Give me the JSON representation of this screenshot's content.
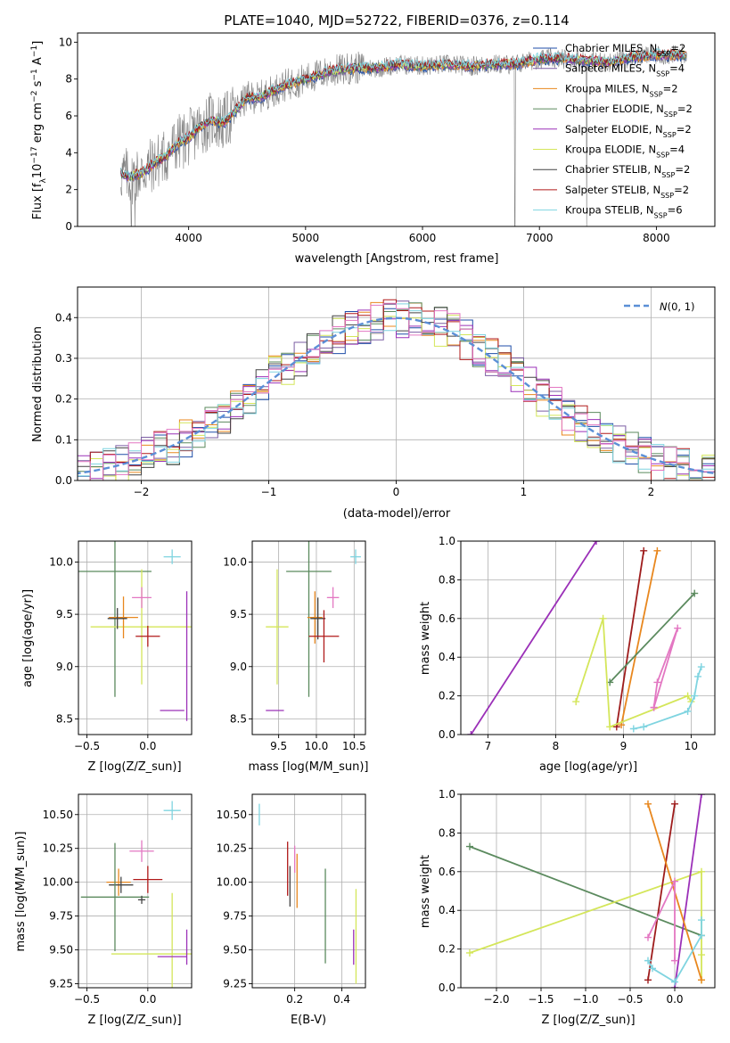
{
  "figure_title": "PLATE=1040, MJD=52722, FIBERID=0376, z=0.114",
  "chart_data": [
    {
      "id": "spectrum",
      "type": "line",
      "title": "PLATE=1040, MJD=52722, FIBERID=0376, z=0.114",
      "xlabel": "wavelength [Angstrom, rest frame]",
      "ylabel": "Flux [f_λ 10^-17 erg cm^-2 s^-1 A^-1]",
      "xlim": [
        3050,
        8500
      ],
      "ylim": [
        0,
        10.5
      ],
      "xticks": [
        4000,
        5000,
        6000,
        7000,
        8000
      ],
      "yticks": [
        0,
        2,
        4,
        6,
        8,
        10
      ],
      "grid": false,
      "legend_position": "upper right",
      "data_series": {
        "name": "data",
        "color": "#808080"
      },
      "data_spikes_to_zero": [
        3510,
        3540,
        6790,
        7405
      ],
      "model_shape": {
        "x": [
          3400,
          3500,
          3600,
          3700,
          3800,
          3900,
          4000,
          4100,
          4200,
          4300,
          4400,
          4500,
          4600,
          4700,
          4800,
          4900,
          5000,
          5200,
          5400,
          5600,
          5800,
          6000,
          6200,
          6400,
          6600,
          6800,
          7000,
          7200,
          7400,
          7600,
          7800,
          8000,
          8200
        ],
        "y": [
          2.9,
          2.7,
          2.9,
          3.4,
          3.8,
          4.5,
          4.8,
          5.4,
          5.8,
          5.6,
          6.3,
          7.0,
          7.0,
          7.3,
          7.6,
          7.8,
          8.0,
          8.4,
          8.6,
          8.6,
          8.8,
          8.7,
          8.8,
          8.7,
          8.8,
          8.8,
          9.1,
          9.1,
          9.0,
          8.9,
          9.2,
          9.3,
          9.3
        ]
      },
      "series": [
        {
          "name": "Chabrier MILES, N_SSP=2",
          "color": "#1f4ea8"
        },
        {
          "name": "Salpeter MILES, N_SSP=4",
          "color": "#7b5ea3"
        },
        {
          "name": "Kroupa MILES, N_SSP=2",
          "color": "#e8871e"
        },
        {
          "name": "Chabrier ELODIE, N_SSP=2",
          "color": "#5b8a5e"
        },
        {
          "name": "Salpeter ELODIE, N_SSP=2",
          "color": "#9b30b8"
        },
        {
          "name": "Kroupa ELODIE, N_SSP=4",
          "color": "#d4e65a"
        },
        {
          "name": "Chabrier STELIB, N_SSP=2",
          "color": "#444444"
        },
        {
          "name": "Salpeter STELIB, N_SSP=2",
          "color": "#b01a1a"
        },
        {
          "name": "Kroupa STELIB, N_SSP=6",
          "color": "#7fd4e0"
        }
      ]
    },
    {
      "id": "residuals",
      "type": "histogram",
      "xlabel": "(data-model)/error",
      "ylabel": "Normed distribution",
      "xlim": [
        -2.5,
        2.5
      ],
      "ylim": [
        0,
        0.475
      ],
      "xticks": [
        -2,
        -1,
        0,
        1,
        2
      ],
      "yticks": [
        0.0,
        0.1,
        0.2,
        0.3,
        0.4
      ],
      "grid": true,
      "legend_position": "upper right",
      "bin_width": 0.1,
      "reference": {
        "name": "N(0,1)",
        "mean": 0,
        "sigma": 1,
        "color": "#5b8fd6"
      },
      "series_colors": [
        "#1f4ea8",
        "#7b5ea3",
        "#e8871e",
        "#5b8a5e",
        "#9b30b8",
        "#d4e65a",
        "#444444",
        "#b01a1a",
        "#7fd4e0",
        "#e377c2"
      ]
    },
    {
      "id": "age_vs_Z",
      "type": "errorbar",
      "xlabel": "Z [log10(Z/Z_sun)]",
      "ylabel": "age [log10(age/yr)]",
      "xlim": [
        -0.57,
        0.36
      ],
      "ylim": [
        8.35,
        10.2
      ],
      "xticks": [
        -0.5,
        0.0
      ],
      "yticks": [
        8.5,
        9.0,
        9.5,
        10.0
      ],
      "grid": true,
      "points": [
        {
          "color": "#7fd4e0",
          "x": 0.2,
          "y": 10.05,
          "xerr": 0.07,
          "yerr": 0.07
        },
        {
          "color": "#5b8a5e",
          "x": -0.27,
          "y": 9.91,
          "xerr": 0.3,
          "yerr": 1.2
        },
        {
          "color": "#d4e65a",
          "x": -0.05,
          "y": 9.38,
          "xerr": 0.42,
          "yerr": 0.55
        },
        {
          "color": "#e377c2",
          "x": -0.05,
          "y": 9.66,
          "xerr": 0.08,
          "yerr": 0.1
        },
        {
          "color": "#e8871e",
          "x": -0.2,
          "y": 9.47,
          "xerr": 0.12,
          "yerr": 0.2
        },
        {
          "color": "#444444",
          "x": -0.25,
          "y": 9.46,
          "xerr": 0.08,
          "yerr": 0.1
        },
        {
          "color": "#b01a1a",
          "x": 0.0,
          "y": 9.29,
          "xerr": 0.1,
          "yerr": 0.1
        },
        {
          "color": "#9b30b8",
          "x": 0.2,
          "y": 8.58,
          "xerr": 0.1,
          "yerr": 0.0
        },
        {
          "color": "#9b30b8",
          "x": 0.32,
          "y": 9.1,
          "xerr": 0.0,
          "yerr": 0.62
        }
      ]
    },
    {
      "id": "age_vs_mass",
      "type": "errorbar",
      "xlabel": "mass [log10(M/M_sun)]",
      "xlim": [
        9.15,
        10.65
      ],
      "ylim": [
        8.35,
        10.2
      ],
      "xticks": [
        9.5,
        10.0,
        10.5
      ],
      "yticks": [
        8.5,
        9.0,
        9.5,
        10.0
      ],
      "grid": true,
      "points": [
        {
          "color": "#7fd4e0",
          "x": 10.52,
          "y": 10.05,
          "xerr": 0.07,
          "yerr": 0.07
        },
        {
          "color": "#5b8a5e",
          "x": 9.9,
          "y": 9.91,
          "xerr": 0.3,
          "yerr": 1.2
        },
        {
          "color": "#d4e65a",
          "x": 9.48,
          "y": 9.38,
          "xerr": 0.15,
          "yerr": 0.55
        },
        {
          "color": "#e377c2",
          "x": 10.22,
          "y": 9.66,
          "xerr": 0.08,
          "yerr": 0.1
        },
        {
          "color": "#e8871e",
          "x": 9.98,
          "y": 9.47,
          "xerr": 0.1,
          "yerr": 0.25
        },
        {
          "color": "#444444",
          "x": 10.02,
          "y": 9.46,
          "xerr": 0.1,
          "yerr": 0.2
        },
        {
          "color": "#b01a1a",
          "x": 10.1,
          "y": 9.29,
          "xerr": 0.2,
          "yerr": 0.25
        },
        {
          "color": "#9b30b8",
          "x": 9.45,
          "y": 8.58,
          "xerr": 0.12,
          "yerr": 0.0
        }
      ]
    },
    {
      "id": "weight_vs_age",
      "type": "line",
      "xlabel": "age [log10(age/yr)]",
      "ylabel": "mass weight",
      "xlim": [
        6.6,
        10.35
      ],
      "ylim": [
        0,
        1
      ],
      "xticks": [
        7,
        8,
        9,
        10
      ],
      "yticks": [
        0.0,
        0.2,
        0.4,
        0.6,
        0.8,
        1.0
      ],
      "grid": true,
      "series": [
        {
          "color": "#9b30b8",
          "x": [
            6.75,
            8.6
          ],
          "y": [
            0.0,
            1.0
          ]
        },
        {
          "color": "#9e1c1c",
          "x": [
            8.9,
            9.3
          ],
          "y": [
            0.04,
            0.95
          ]
        },
        {
          "color": "#e8871e",
          "x": [
            8.97,
            9.5
          ],
          "y": [
            0.05,
            0.95
          ]
        },
        {
          "color": "#5b8a5e",
          "x": [
            8.8,
            10.05
          ],
          "y": [
            0.27,
            0.73
          ]
        },
        {
          "color": "#d4e65a",
          "x": [
            8.3,
            8.7,
            8.8,
            9.95,
            10.0
          ],
          "y": [
            0.17,
            0.6,
            0.04,
            0.2,
            0.17
          ]
        },
        {
          "color": "#e377c2",
          "x": [
            9.45,
            9.8,
            9.5,
            9.45
          ],
          "y": [
            0.14,
            0.55,
            0.27,
            0.14
          ]
        },
        {
          "color": "#7fd4e0",
          "x": [
            9.15,
            9.3,
            9.95,
            10.05,
            10.1,
            10.15
          ],
          "y": [
            0.03,
            0.04,
            0.12,
            0.2,
            0.3,
            0.35
          ]
        }
      ]
    },
    {
      "id": "mass_vs_Z",
      "type": "errorbar",
      "xlabel": "Z [log10(Z/Z_sun)]",
      "ylabel": "mass [log10(M/M_sun)]",
      "xlim": [
        -0.57,
        0.36
      ],
      "ylim": [
        9.22,
        10.65
      ],
      "xticks": [
        -0.5,
        0.0
      ],
      "yticks": [
        9.25,
        9.5,
        9.75,
        10.0,
        10.25,
        10.5
      ],
      "grid": true,
      "points": [
        {
          "color": "#7fd4e0",
          "x": 0.2,
          "y": 10.53,
          "xerr": 0.07,
          "yerr": 0.07
        },
        {
          "color": "#e377c2",
          "x": -0.05,
          "y": 10.23,
          "xerr": 0.1,
          "yerr": 0.08
        },
        {
          "color": "#e8871e",
          "x": -0.24,
          "y": 10.0,
          "xerr": 0.1,
          "yerr": 0.1
        },
        {
          "color": "#444444",
          "x": -0.22,
          "y": 9.98,
          "xerr": 0.1,
          "yerr": 0.06
        },
        {
          "color": "#b01a1a",
          "x": 0.0,
          "y": 10.02,
          "xerr": 0.12,
          "yerr": 0.1
        },
        {
          "color": "#5b8a5e",
          "x": -0.27,
          "y": 9.89,
          "xerr": 0.28,
          "yerr": 0.4
        },
        {
          "color": "#444444",
          "x": -0.05,
          "y": 9.87,
          "xerr": 0.03,
          "yerr": 0.03
        },
        {
          "color": "#d4e65a",
          "x": 0.2,
          "y": 9.47,
          "xerr": 0.5,
          "yerr": 0.45
        },
        {
          "color": "#9b30b8",
          "x": 0.2,
          "y": 9.45,
          "xerr": 0.12,
          "yerr": 0.0
        },
        {
          "color": "#9b30b8",
          "x": 0.32,
          "y": 9.52,
          "xerr": 0.0,
          "yerr": 0.13
        }
      ]
    },
    {
      "id": "mass_vs_ebv",
      "type": "errorbar",
      "xlabel": "E(B-V)",
      "xlim": [
        0.02,
        0.5
      ],
      "ylim": [
        9.22,
        10.65
      ],
      "xticks": [
        0.2,
        0.4
      ],
      "yticks": [
        9.25,
        9.5,
        9.75,
        10.0,
        10.25,
        10.5
      ],
      "grid": true,
      "points": [
        {
          "color": "#7fd4e0",
          "x": 0.05,
          "y": 10.5,
          "xerr": 0.0,
          "yerr": 0.08
        },
        {
          "color": "#b01a1a",
          "x": 0.17,
          "y": 10.1,
          "xerr": 0.0,
          "yerr": 0.2
        },
        {
          "color": "#444444",
          "x": 0.18,
          "y": 9.97,
          "xerr": 0.0,
          "yerr": 0.15
        },
        {
          "color": "#e377c2",
          "x": 0.2,
          "y": 10.17,
          "xerr": 0.0,
          "yerr": 0.1
        },
        {
          "color": "#e8871e",
          "x": 0.21,
          "y": 10.01,
          "xerr": 0.0,
          "yerr": 0.2
        },
        {
          "color": "#5b8a5e",
          "x": 0.33,
          "y": 9.75,
          "xerr": 0.0,
          "yerr": 0.35
        },
        {
          "color": "#9b30b8",
          "x": 0.45,
          "y": 9.52,
          "xerr": 0.0,
          "yerr": 0.13
        },
        {
          "color": "#d4e65a",
          "x": 0.46,
          "y": 9.6,
          "xerr": 0.0,
          "yerr": 0.35
        }
      ]
    },
    {
      "id": "weight_vs_Z",
      "type": "line",
      "xlabel": "Z [log10(Z/Z_sun)]",
      "ylabel": "mass weight",
      "xlim": [
        -2.4,
        0.45
      ],
      "ylim": [
        0,
        1
      ],
      "xticks": [
        -2.0,
        -1.5,
        -1.0,
        -0.5,
        0.0
      ],
      "yticks": [
        0.0,
        0.2,
        0.4,
        0.6,
        0.8,
        1.0
      ],
      "grid": true,
      "series": [
        {
          "color": "#5b8a5e",
          "x": [
            -2.3,
            0.3
          ],
          "y": [
            0.73,
            0.27
          ]
        },
        {
          "color": "#d4e65a",
          "x": [
            -2.3,
            0.3,
            0.3,
            0.3
          ],
          "y": [
            0.18,
            0.6,
            0.04,
            0.17
          ]
        },
        {
          "color": "#9b30b8",
          "x": [
            0.0,
            0.3
          ],
          "y": [
            0.0,
            1.0
          ]
        },
        {
          "color": "#9e1c1c",
          "x": [
            -0.3,
            0.0
          ],
          "y": [
            0.04,
            0.95
          ]
        },
        {
          "color": "#e8871e",
          "x": [
            -0.3,
            0.3
          ],
          "y": [
            0.95,
            0.04
          ]
        },
        {
          "color": "#e377c2",
          "x": [
            -0.3,
            0.0,
            0.0
          ],
          "y": [
            0.26,
            0.55,
            0.14
          ]
        },
        {
          "color": "#7fd4e0",
          "x": [
            -0.3,
            -0.25,
            0.0,
            0.3,
            0.3
          ],
          "y": [
            0.14,
            0.1,
            0.03,
            0.27,
            0.35
          ]
        }
      ]
    }
  ]
}
